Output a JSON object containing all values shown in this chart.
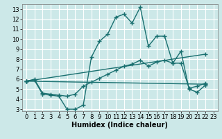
{
  "xlabel": "Humidex (Indice chaleur)",
  "bg_color": "#cce8e8",
  "grid_color": "#ffffff",
  "line_color": "#1a7070",
  "marker": "+",
  "markersize": 4,
  "linewidth": 1.0,
  "xlim": [
    -0.5,
    23.5
  ],
  "ylim": [
    2.8,
    13.5
  ],
  "xticks": [
    0,
    1,
    2,
    3,
    4,
    5,
    6,
    7,
    8,
    9,
    10,
    11,
    12,
    13,
    14,
    15,
    16,
    17,
    18,
    19,
    20,
    21,
    22,
    23
  ],
  "yticks": [
    3,
    4,
    5,
    6,
    7,
    8,
    9,
    10,
    11,
    12,
    13
  ],
  "series": [
    {
      "x": [
        0,
        1,
        2,
        3,
        4,
        5,
        6,
        7,
        8,
        9,
        10,
        11,
        12,
        13,
        14,
        15,
        16,
        17,
        18,
        19,
        20,
        21,
        22
      ],
      "y": [
        5.8,
        5.9,
        4.5,
        4.4,
        4.3,
        3.0,
        3.0,
        3.4,
        8.2,
        9.8,
        10.5,
        12.2,
        12.5,
        11.6,
        13.2,
        9.3,
        10.3,
        10.3,
        7.6,
        8.8,
        5.0,
        4.7,
        5.4
      ]
    },
    {
      "x": [
        0,
        1,
        2,
        3,
        4,
        5,
        6,
        7,
        8,
        9,
        10,
        11,
        12,
        13,
        14,
        15,
        16,
        17,
        18,
        19,
        20,
        21,
        22
      ],
      "y": [
        5.8,
        6.0,
        4.6,
        4.5,
        4.4,
        4.3,
        4.5,
        5.3,
        5.7,
        6.1,
        6.5,
        6.9,
        7.3,
        7.5,
        7.9,
        7.3,
        7.7,
        7.9,
        7.6,
        7.6,
        5.1,
        5.3,
        5.6
      ]
    },
    {
      "x": [
        0,
        22
      ],
      "y": [
        5.8,
        5.5
      ]
    },
    {
      "x": [
        0,
        22
      ],
      "y": [
        5.8,
        8.5
      ]
    }
  ],
  "xlabel_fontsize": 7,
  "tick_fontsize": 6
}
